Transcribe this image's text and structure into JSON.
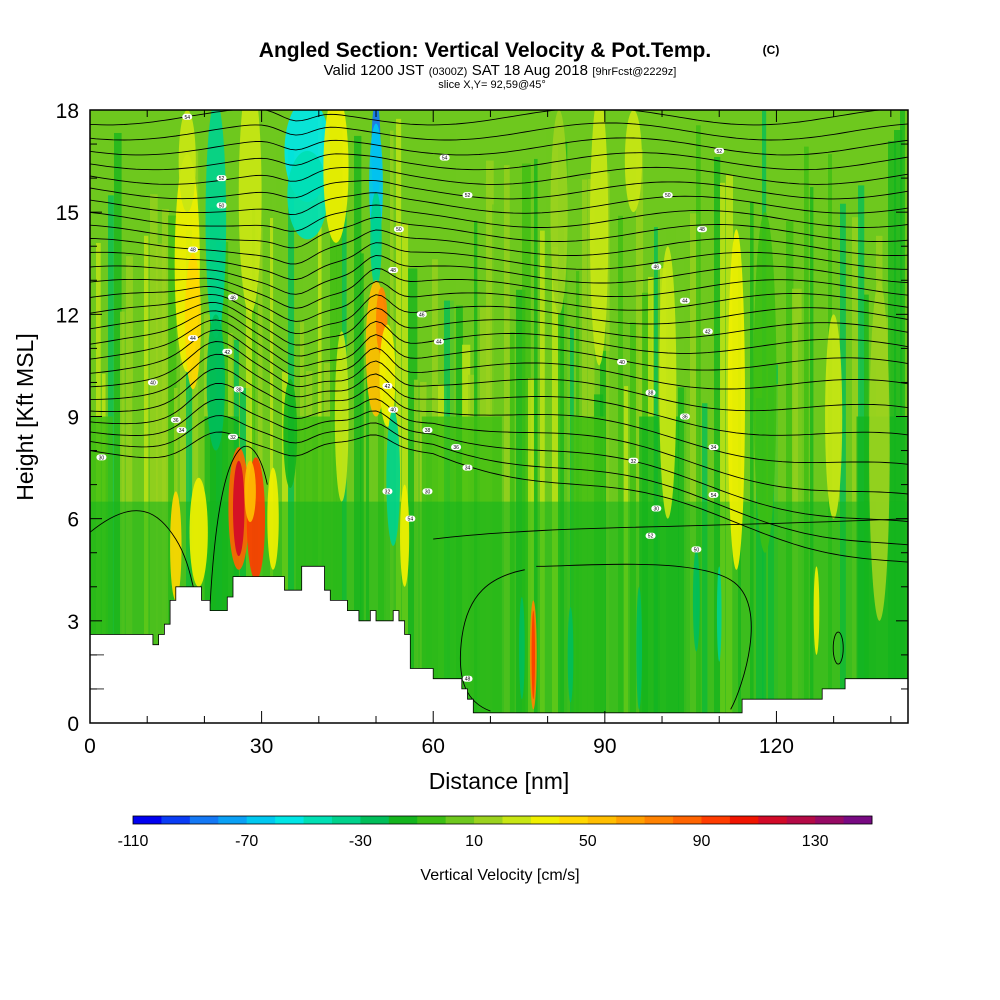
{
  "chart_data": {
    "type": "heatmap",
    "title": "Angled Section: Vertical Velocity & Pot.Temp.",
    "title_units": "(C)",
    "subtitle": {
      "valid": "Valid 1200 JST",
      "zulu": "(0300Z)",
      "date": "SAT 18 Aug 2018",
      "forecast": "[9hrFcst@2229z]"
    },
    "slice_label": "slice X,Y= 92,59@45°",
    "xlabel": "Distance [nm]",
    "ylabel": "Height [Kft MSL]",
    "xlim": [
      0,
      143
    ],
    "ylim": [
      0,
      18
    ],
    "x_ticks": [
      0,
      30,
      60,
      90,
      120
    ],
    "y_ticks": [
      0,
      3,
      6,
      9,
      12,
      15,
      18
    ],
    "colorbar": {
      "label": "Vertical Velocity [cm/s]",
      "tick_labels": [
        "-110",
        "-70",
        "-30",
        "10",
        "50",
        "90",
        "130"
      ],
      "tick_values": [
        -110,
        -70,
        -30,
        10,
        50,
        90,
        130
      ],
      "range": [
        -110,
        150
      ],
      "colors": [
        "#0000f0",
        "#0a3cf5",
        "#1478f5",
        "#0aa0f5",
        "#00c8f0",
        "#00e6e6",
        "#00e0b4",
        "#00d28c",
        "#00be5a",
        "#14b41e",
        "#3cbe14",
        "#6ec81e",
        "#9bd21e",
        "#c8e614",
        "#f0f000",
        "#ffd700",
        "#ffbe00",
        "#ffa000",
        "#ff8200",
        "#ff6400",
        "#ff3c00",
        "#f01400",
        "#d20a28",
        "#b40a46",
        "#960a64",
        "#780a82"
      ]
    },
    "terrain": [
      [
        0,
        2.6
      ],
      [
        10,
        2.6
      ],
      [
        11,
        2.3
      ],
      [
        12,
        2.6
      ],
      [
        13,
        2.9
      ],
      [
        14,
        3.6
      ],
      [
        15,
        4.0
      ],
      [
        19,
        4.0
      ],
      [
        19.5,
        3.6
      ],
      [
        20.5,
        3.6
      ],
      [
        21,
        3.3
      ],
      [
        23,
        3.3
      ],
      [
        24,
        3.7
      ],
      [
        25,
        4.3
      ],
      [
        33,
        4.3
      ],
      [
        34,
        3.9
      ],
      [
        36,
        3.9
      ],
      [
        37,
        4.6
      ],
      [
        40,
        4.6
      ],
      [
        41,
        3.9
      ],
      [
        42,
        3.6
      ],
      [
        44,
        3.6
      ],
      [
        45,
        3.3
      ],
      [
        47,
        3.0
      ],
      [
        49,
        3.3
      ],
      [
        50,
        3.0
      ],
      [
        53,
        3.3
      ],
      [
        54,
        3.0
      ],
      [
        55,
        2.6
      ],
      [
        56,
        1.6
      ],
      [
        59,
        1.6
      ],
      [
        60,
        1.3
      ],
      [
        65,
        1.0
      ],
      [
        66,
        0.7
      ],
      [
        67,
        0.3
      ],
      [
        113,
        0.3
      ],
      [
        114,
        0.7
      ],
      [
        127,
        0.7
      ],
      [
        128,
        1.0
      ],
      [
        131,
        1.0
      ],
      [
        132,
        1.3
      ],
      [
        137,
        1.3
      ],
      [
        138,
        1.3
      ],
      [
        143,
        1.3
      ]
    ],
    "contour_labels": [
      "54",
      "52",
      "50",
      "48",
      "46",
      "44",
      "42",
      "40",
      "38",
      "36",
      "34",
      "32",
      "30"
    ]
  }
}
